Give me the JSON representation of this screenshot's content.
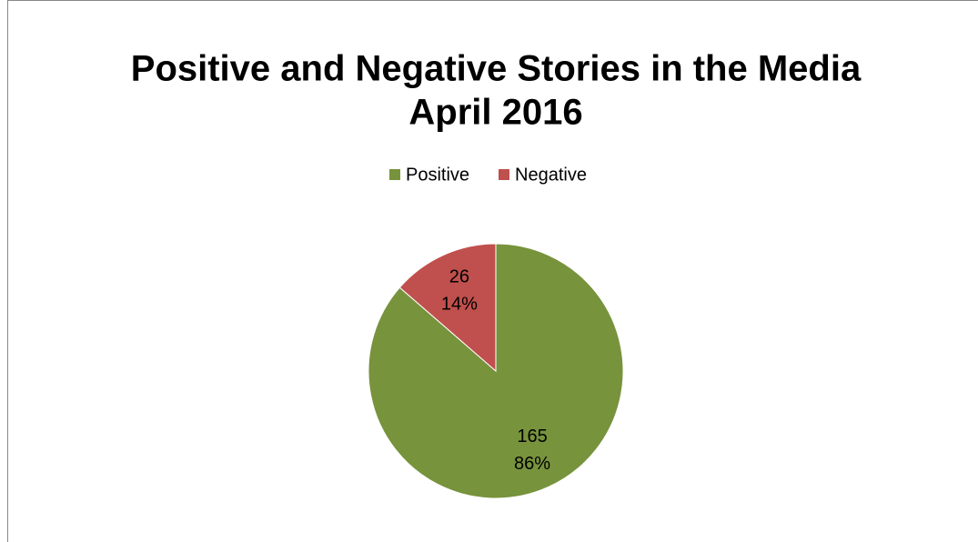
{
  "chart_data": {
    "type": "pie",
    "title": [
      "Positive and Negative Stories in the Media",
      "April 2016"
    ],
    "categories": [
      "Positive",
      "Negative"
    ],
    "values": [
      165,
      26
    ],
    "percent_labels": [
      "86%",
      "14%"
    ],
    "colors": [
      "#77933c",
      "#c0504d"
    ],
    "legend": "top"
  }
}
